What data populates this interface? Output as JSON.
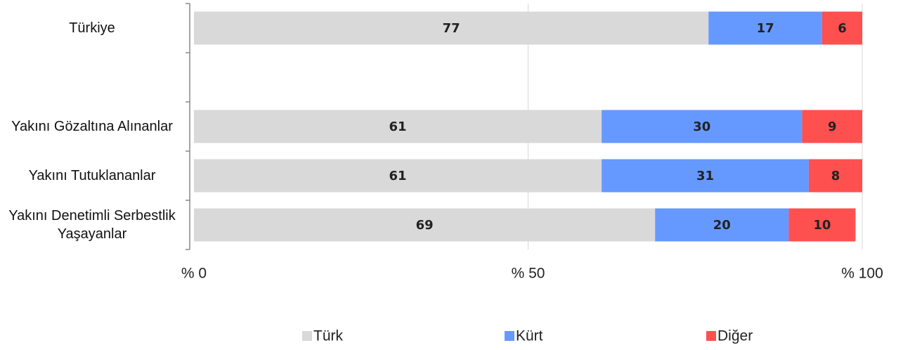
{
  "chart_data": {
    "type": "stacked_barh",
    "categories": [
      "Türkiye",
      null,
      "Yakını Gözaltına Alınanlar",
      "Yakını Tutuklananlar",
      "Yakını Denetimli Serbestlik Yaşayanlar"
    ],
    "series": [
      {
        "name": "Türk",
        "color": "#d9d9d9",
        "values": [
          77,
          null,
          61,
          61,
          69
        ]
      },
      {
        "name": "Kürt",
        "color": "#6699ff",
        "values": [
          17,
          null,
          30,
          31,
          20
        ]
      },
      {
        "name": "Diğer",
        "color": "#ff5050",
        "values": [
          6,
          null,
          9,
          8,
          10
        ]
      }
    ],
    "xlim": [
      0,
      100
    ],
    "xticks": [
      {
        "value": 0,
        "label": "% 0"
      },
      {
        "value": 50,
        "label": "% 50"
      },
      {
        "value": 100,
        "label": "% 100"
      }
    ],
    "grid": true,
    "legend": "bottom"
  }
}
